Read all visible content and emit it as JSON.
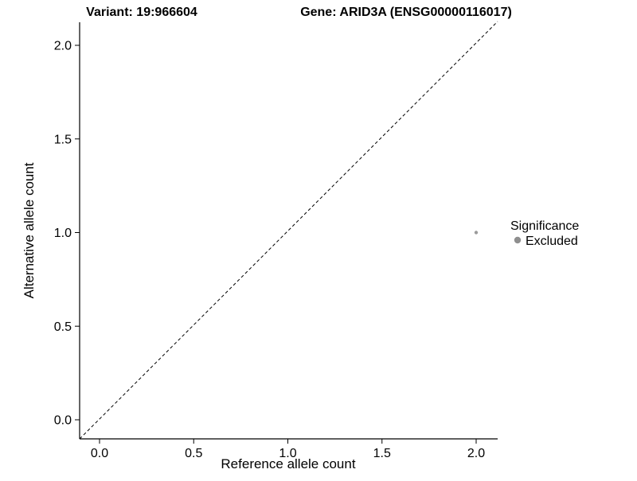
{
  "header": {
    "title_left": "Variant: 19:966604",
    "title_right": "Gene: ARID3A (ENSG00000116017)"
  },
  "chart_data": {
    "type": "scatter",
    "title": "Variant: 19:966604    Gene: ARID3A (ENSG00000116017)",
    "xlabel": "Reference allele count",
    "ylabel": "Alternative allele count",
    "xlim": [
      -0.1,
      2.1
    ],
    "ylim": [
      -0.1,
      2.1
    ],
    "x_ticks": [
      "0.0",
      "0.5",
      "1.0",
      "1.5",
      "2.0"
    ],
    "y_ticks": [
      "2.0",
      "1.5",
      "1.0",
      "0.5",
      "0.0"
    ],
    "grid": false,
    "reference_line": {
      "type": "identity y=x",
      "style": "dashed",
      "color": "#000000"
    },
    "series": [
      {
        "name": "Excluded",
        "color": "#9b9b9b",
        "points": [
          {
            "x": 2.0,
            "y": 1.0
          }
        ]
      }
    ],
    "legend": {
      "position": "right",
      "title": "Significance",
      "entries": [
        {
          "label": "Excluded",
          "color": "#8f8f8f"
        }
      ]
    }
  }
}
